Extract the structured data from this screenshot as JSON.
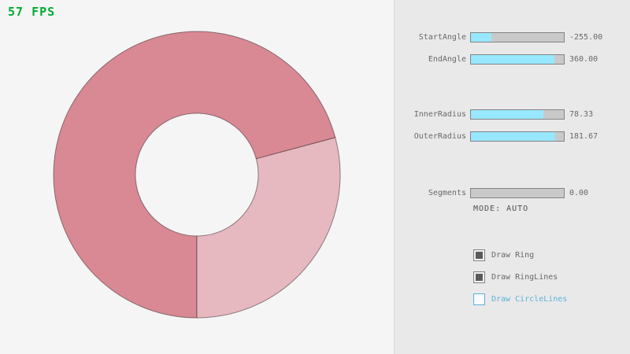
{
  "fps_label": "57 FPS",
  "fps_color": "#00ab2e",
  "ring": {
    "color_dark": "#d98994",
    "color_light": "#e6b8bf",
    "outline": "rgba(45,25,30,0.5)"
  },
  "panel": {
    "accent_fill": "#97e8ff",
    "sliders": [
      {
        "label": "StartAngle",
        "value": "-255.00",
        "fraction": 0.217
      },
      {
        "label": "EndAngle",
        "value": "360.00",
        "fraction": 0.9
      },
      {
        "label": "InnerRadius",
        "value": "78.33",
        "fraction": 0.783
      },
      {
        "label": "OuterRadius",
        "value": "181.67",
        "fraction": 0.908
      },
      {
        "label": "Segments",
        "value": "0.00",
        "fraction": 0
      }
    ],
    "mode_text": "MODE: AUTO",
    "checkboxes": [
      {
        "label": "Draw Ring",
        "checked": true,
        "focused": false
      },
      {
        "label": "Draw RingLines",
        "checked": true,
        "focused": false
      },
      {
        "label": "Draw CircleLines",
        "checked": false,
        "focused": true
      }
    ]
  }
}
